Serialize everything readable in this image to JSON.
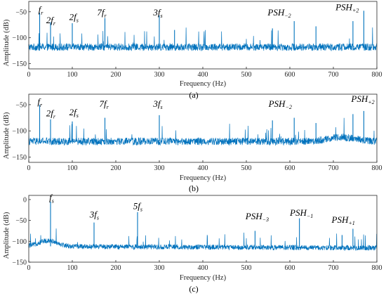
{
  "chart_data": [
    {
      "id": "a",
      "type": "line",
      "caption": "(a)",
      "xlabel": "Frequency (Hz)",
      "ylabel": "Amplitude (dB)",
      "xlim": [
        0,
        800
      ],
      "ylim": [
        -160,
        -30
      ],
      "xticks": [
        0,
        100,
        200,
        300,
        400,
        500,
        600,
        700,
        800
      ],
      "yticks": [
        -50,
        -100,
        -150
      ],
      "grid": false,
      "series_color": "#0072BD",
      "baseline_db": -118,
      "noise_db": 7,
      "peaks": [
        {
          "f": 25,
          "db": -52
        },
        {
          "f": 50,
          "db": -70
        },
        {
          "f": 100,
          "db": -72
        },
        {
          "f": 175,
          "db": -62
        },
        {
          "f": 300,
          "db": -57
        },
        {
          "f": 335,
          "db": -85
        },
        {
          "f": 560,
          "db": -82
        },
        {
          "f": 610,
          "db": -68
        },
        {
          "f": 660,
          "db": -78
        },
        {
          "f": 745,
          "db": -68
        },
        {
          "f": 770,
          "db": -48
        }
      ],
      "annotations": [
        {
          "main": "f",
          "sub": "r",
          "x": 22,
          "y": -52
        },
        {
          "main": "2f",
          "sub": "r",
          "x": 40,
          "y": -72
        },
        {
          "main": "2f",
          "sub": "s",
          "x": 93,
          "y": -66
        },
        {
          "main": "7f",
          "sub": "r",
          "x": 157,
          "y": -57
        },
        {
          "main": "3f",
          "sub": "s",
          "x": 286,
          "y": -57
        },
        {
          "main": "PSH",
          "sub": "−2",
          "x": 549,
          "y": -57
        },
        {
          "main": "PSH",
          "sub": "+2",
          "x": 705,
          "y": -47
        }
      ]
    },
    {
      "id": "b",
      "type": "line",
      "caption": "(b)",
      "xlabel": "Frequency (Hz)",
      "ylabel": "Amplitude (dB)",
      "xlim": [
        0,
        800
      ],
      "ylim": [
        -160,
        -30
      ],
      "xticks": [
        0,
        100,
        200,
        300,
        400,
        500,
        600,
        700,
        800
      ],
      "yticks": [
        -50,
        -100,
        -150
      ],
      "grid": false,
      "series_color": "#0072BD",
      "baseline_db": -120,
      "noise_db": 7,
      "peaks": [
        {
          "f": 25,
          "db": -50
        },
        {
          "f": 50,
          "db": -78
        },
        {
          "f": 100,
          "db": -82
        },
        {
          "f": 175,
          "db": -75
        },
        {
          "f": 300,
          "db": -70
        },
        {
          "f": 560,
          "db": -80
        },
        {
          "f": 610,
          "db": -75
        },
        {
          "f": 660,
          "db": -85
        },
        {
          "f": 745,
          "db": -68
        },
        {
          "f": 770,
          "db": -62
        }
      ],
      "annotations": [
        {
          "main": "f",
          "sub": "r",
          "x": 20,
          "y": -50
        },
        {
          "main": "2f",
          "sub": "r",
          "x": 40,
          "y": -72
        },
        {
          "main": "2f",
          "sub": "s",
          "x": 93,
          "y": -70
        },
        {
          "main": "7f",
          "sub": "r",
          "x": 162,
          "y": -54
        },
        {
          "main": "3f",
          "sub": "s",
          "x": 286,
          "y": -54
        },
        {
          "main": "PSH",
          "sub": "−2",
          "x": 551,
          "y": -54
        },
        {
          "main": "PSH",
          "sub": "+2",
          "x": 741,
          "y": -45
        }
      ]
    },
    {
      "id": "c",
      "type": "line",
      "caption": "(c)",
      "xlabel": "Frequency (Hz)",
      "ylabel": "Amplitude (dB)",
      "xlim": [
        0,
        800
      ],
      "ylim": [
        -150,
        10
      ],
      "xticks": [
        0,
        100,
        200,
        300,
        400,
        500,
        600,
        700,
        800
      ],
      "yticks": [
        0,
        -50,
        -100,
        -150
      ],
      "grid": false,
      "series_color": "#0072BD",
      "baseline_db": -112,
      "noise_db": 6,
      "peaks": [
        {
          "f": 50,
          "db": -5
        },
        {
          "f": 150,
          "db": -55
        },
        {
          "f": 250,
          "db": -30
        },
        {
          "f": 520,
          "db": -75
        },
        {
          "f": 622,
          "db": -45
        },
        {
          "f": 720,
          "db": -85
        },
        {
          "f": 745,
          "db": -70
        }
      ],
      "annotations": [
        {
          "main": "f",
          "sub": "s",
          "x": 47,
          "y": -3
        },
        {
          "main": "3f",
          "sub": "s",
          "x": 140,
          "y": -43
        },
        {
          "main": "5f",
          "sub": "s",
          "x": 240,
          "y": -23
        },
        {
          "main": "PSH",
          "sub": "−3",
          "x": 498,
          "y": -47
        },
        {
          "main": "PSH",
          "sub": "−1",
          "x": 600,
          "y": -39
        },
        {
          "main": "PSH",
          "sub": "+1",
          "x": 696,
          "y": -56
        }
      ]
    }
  ]
}
